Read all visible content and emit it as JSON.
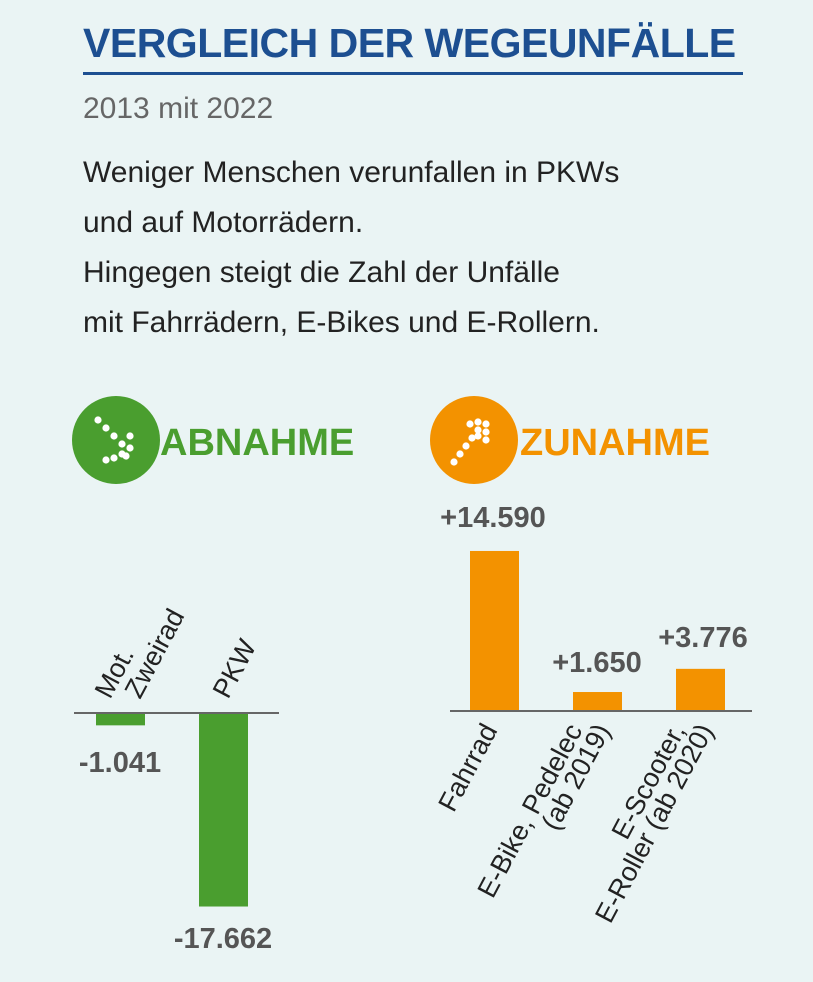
{
  "header": {
    "title": "VERGLEICH DER WEGEUNFÄLLE",
    "subtitle": "2013 mit 2022"
  },
  "description": [
    "Weniger Menschen verunfallen in PKWs",
    "und auf Motorrädern.",
    "Hingegen steigt die Zahl der Unfälle",
    "mit Fahrrädern, E-Bikes und E-Rollern."
  ],
  "colors": {
    "title": "#1d4f91",
    "decrease": "#4a9e2f",
    "increase": "#f39200",
    "axis": "#666666",
    "value_text": "#555555"
  },
  "chart_data": [
    {
      "type": "bar",
      "title": "ABNAHME",
      "icon": "trend-down-dots-icon",
      "categories": [
        [
          "Mot.",
          "Zweirad"
        ],
        [
          "PKW"
        ]
      ],
      "values": [
        -1041,
        -17662
      ],
      "value_labels": [
        "-1.041",
        "-17.662"
      ]
    },
    {
      "type": "bar",
      "title": "ZUNAHME",
      "icon": "trend-up-dots-icon",
      "categories": [
        [
          "Fahrrad"
        ],
        [
          "E-Bike, Pedelec",
          "(ab 2019)"
        ],
        [
          "E-Scooter,",
          "E-Roller (ab 2020)"
        ]
      ],
      "values": [
        14590,
        1650,
        3776
      ],
      "value_labels": [
        "+14.590",
        "+1.650",
        "+3.776"
      ]
    }
  ]
}
